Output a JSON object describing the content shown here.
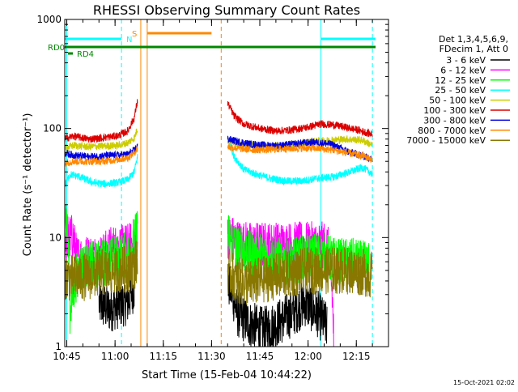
{
  "chart_data": {
    "type": "line",
    "title": "RHESSI Observing Summary Count Rates",
    "xlabel": "Start Time (15-Feb-04 10:44:22)",
    "ylabel": "Count Rate (s⁻¹ detector⁻¹)",
    "y_scale": "log",
    "ylim": [
      1,
      1000
    ],
    "xlim": [
      "10:44:22",
      "12:25:00"
    ],
    "x_ticks": [
      "10:45",
      "11:00",
      "11:15",
      "11:30",
      "11:45",
      "12:00",
      "12:15"
    ],
    "y_ticks": [
      "1",
      "10",
      "100",
      "1000"
    ],
    "legend_header": [
      "Det 1,3,4,5,6,9,",
      "FDecim 1, Att 0"
    ],
    "legend_position": "right",
    "footer_date": "15-Oct-2021 02:02",
    "markers": {
      "rd0_label": "RD0",
      "rd4_label": "RD4",
      "n_label": "N",
      "s_label": "S"
    },
    "data_gaps": [
      [
        "11:09",
        "11:34"
      ]
    ],
    "series": [
      {
        "name": "3 - 6 keV",
        "color": "#000000",
        "seg1": [
          [
            "10:55",
            2.5
          ],
          [
            "10:58",
            2.2
          ],
          [
            "11:01",
            2.4
          ],
          [
            "11:04",
            2.6
          ],
          [
            "11:06",
            3.5
          ]
        ],
        "seg2": [
          [
            "11:35",
            4.0
          ],
          [
            "11:38",
            2.0
          ],
          [
            "11:42",
            1.6
          ],
          [
            "11:46",
            1.4
          ],
          [
            "11:50",
            1.6
          ],
          [
            "11:55",
            2.0
          ],
          [
            "11:59",
            2.5
          ],
          [
            "12:03",
            2.0
          ],
          [
            "12:06",
            1.5
          ]
        ]
      },
      {
        "name": "6 - 12 keV",
        "color": "#ff00ff",
        "seg1": [
          [
            "10:44",
            10
          ],
          [
            "10:47",
            10
          ],
          [
            "10:48",
            6.5
          ],
          [
            "10:52",
            6.5
          ],
          [
            "10:56",
            6.6
          ],
          [
            "10:59",
            8.0
          ],
          [
            "11:02",
            8.0
          ],
          [
            "11:05",
            8.5
          ],
          [
            "11:07",
            10.5
          ]
        ],
        "seg2": [
          [
            "11:35",
            10.5
          ],
          [
            "11:38",
            9.0
          ],
          [
            "11:42",
            8.5
          ],
          [
            "11:47",
            8.5
          ],
          [
            "11:52",
            8.5
          ],
          [
            "11:57",
            8.5
          ],
          [
            "12:00",
            8.5
          ],
          [
            "12:06",
            8.5
          ],
          [
            "12:08",
            1.0
          ]
        ]
      },
      {
        "name": "12 - 25 keV",
        "color": "#00ff00",
        "seg1": [
          [
            "10:44",
            24
          ],
          [
            "10:46",
            2.0
          ],
          [
            "10:49",
            5.5
          ],
          [
            "10:53",
            5.5
          ],
          [
            "10:57",
            6.0
          ],
          [
            "11:01",
            6.5
          ],
          [
            "11:04",
            7.0
          ],
          [
            "11:06",
            9.0
          ],
          [
            "11:07",
            12.5
          ]
        ],
        "seg2": [
          [
            "11:35",
            10.5
          ],
          [
            "11:38",
            8.0
          ],
          [
            "11:42",
            7.0
          ],
          [
            "11:48",
            6.5
          ],
          [
            "11:54",
            6.0
          ],
          [
            "11:59",
            6.5
          ],
          [
            "12:04",
            7.0
          ],
          [
            "12:09",
            6.0
          ],
          [
            "12:14",
            6.0
          ],
          [
            "12:19",
            5.5
          ]
        ]
      },
      {
        "name": "25 - 50 keV",
        "color": "#00ffff",
        "seg1": [
          [
            "10:44",
            28
          ],
          [
            "10:46",
            38
          ],
          [
            "10:49",
            36
          ],
          [
            "10:53",
            32
          ],
          [
            "10:57",
            31
          ],
          [
            "11:01",
            32
          ],
          [
            "11:04",
            34
          ],
          [
            "11:06",
            40
          ],
          [
            "11:07",
            55
          ]
        ],
        "seg2": [
          [
            "11:35",
            80
          ],
          [
            "11:37",
            55
          ],
          [
            "11:40",
            42
          ],
          [
            "11:44",
            38
          ],
          [
            "11:48",
            35
          ],
          [
            "11:53",
            33
          ],
          [
            "11:58",
            33
          ],
          [
            "12:03",
            35
          ],
          [
            "12:08",
            36
          ],
          [
            "12:13",
            40
          ],
          [
            "12:17",
            44
          ],
          [
            "12:20",
            38
          ]
        ]
      },
      {
        "name": "50 - 100 keV",
        "color": "#cccc00",
        "seg1": [
          [
            "10:44",
            65
          ],
          [
            "10:47",
            70
          ],
          [
            "10:52",
            68
          ],
          [
            "10:56",
            69
          ],
          [
            "11:01",
            70
          ],
          [
            "11:04",
            74
          ],
          [
            "11:06",
            82
          ],
          [
            "11:07",
            100
          ]
        ],
        "seg2": [
          [
            "11:35",
            78
          ],
          [
            "11:38",
            72
          ],
          [
            "11:42",
            70
          ],
          [
            "11:47",
            68
          ],
          [
            "11:52",
            69
          ],
          [
            "11:57",
            72
          ],
          [
            "12:02",
            76
          ],
          [
            "12:07",
            78
          ],
          [
            "12:12",
            80
          ],
          [
            "12:17",
            78
          ],
          [
            "12:20",
            70
          ]
        ]
      },
      {
        "name": "100 - 300 keV",
        "color": "#dd0000",
        "seg1": [
          [
            "10:44",
            80
          ],
          [
            "10:47",
            85
          ],
          [
            "10:52",
            80
          ],
          [
            "10:56",
            82
          ],
          [
            "11:01",
            86
          ],
          [
            "11:04",
            95
          ],
          [
            "11:06",
            125
          ],
          [
            "11:07",
            180
          ]
        ],
        "seg2": [
          [
            "11:35",
            170
          ],
          [
            "11:37",
            130
          ],
          [
            "11:40",
            110
          ],
          [
            "11:45",
            100
          ],
          [
            "11:50",
            95
          ],
          [
            "11:55",
            97
          ],
          [
            "12:00",
            103
          ],
          [
            "12:04",
            110
          ],
          [
            "12:08",
            108
          ],
          [
            "12:12",
            102
          ],
          [
            "12:16",
            96
          ],
          [
            "12:20",
            88
          ]
        ]
      },
      {
        "name": "300 - 800 keV",
        "color": "#0000dd",
        "seg1": [
          [
            "10:44",
            60
          ],
          [
            "10:47",
            57
          ],
          [
            "10:52",
            55
          ],
          [
            "10:56",
            56
          ],
          [
            "11:01",
            57
          ],
          [
            "11:04",
            58
          ],
          [
            "11:06",
            63
          ],
          [
            "11:07",
            70
          ]
        ],
        "seg2": [
          [
            "11:35",
            80
          ],
          [
            "11:38",
            76
          ],
          [
            "11:42",
            72
          ],
          [
            "11:47",
            70
          ],
          [
            "11:52",
            70
          ],
          [
            "11:57",
            73
          ],
          [
            "12:02",
            75
          ],
          [
            "12:07",
            72
          ],
          [
            "12:12",
            62
          ],
          [
            "12:17",
            56
          ],
          [
            "12:20",
            52
          ]
        ]
      },
      {
        "name": "800 - 7000 keV",
        "color": "#ff8800",
        "seg1": [
          [
            "10:44",
            48
          ],
          [
            "10:47",
            50
          ],
          [
            "10:52",
            50
          ],
          [
            "10:56",
            50
          ],
          [
            "11:01",
            52
          ],
          [
            "11:04",
            54
          ],
          [
            "11:06",
            60
          ],
          [
            "11:07",
            66
          ]
        ],
        "seg2": [
          [
            "11:35",
            68
          ],
          [
            "11:38",
            66
          ],
          [
            "11:42",
            64
          ],
          [
            "11:47",
            64
          ],
          [
            "11:52",
            65
          ],
          [
            "11:57",
            66
          ],
          [
            "12:02",
            66
          ],
          [
            "12:07",
            64
          ],
          [
            "12:12",
            60
          ],
          [
            "12:17",
            56
          ],
          [
            "12:20",
            52
          ]
        ]
      },
      {
        "name": "7000 - 15000 keV",
        "color": "#887700",
        "seg1": [
          [
            "10:44",
            4.5
          ],
          [
            "10:47",
            4.2
          ],
          [
            "10:52",
            4.4
          ],
          [
            "10:56",
            4.8
          ],
          [
            "11:01",
            5.0
          ],
          [
            "11:04",
            5.2
          ],
          [
            "11:06",
            5.5
          ],
          [
            "11:07",
            6.0
          ]
        ],
        "seg2": [
          [
            "11:35",
            5.0
          ],
          [
            "11:38",
            4.0
          ],
          [
            "11:42",
            3.8
          ],
          [
            "11:47",
            4.2
          ],
          [
            "11:52",
            4.5
          ],
          [
            "11:57",
            4.8
          ],
          [
            "12:02",
            5.0
          ],
          [
            "12:07",
            5.0
          ],
          [
            "12:12",
            5.0
          ],
          [
            "12:17",
            4.8
          ],
          [
            "12:20",
            4.5
          ]
        ]
      }
    ]
  }
}
